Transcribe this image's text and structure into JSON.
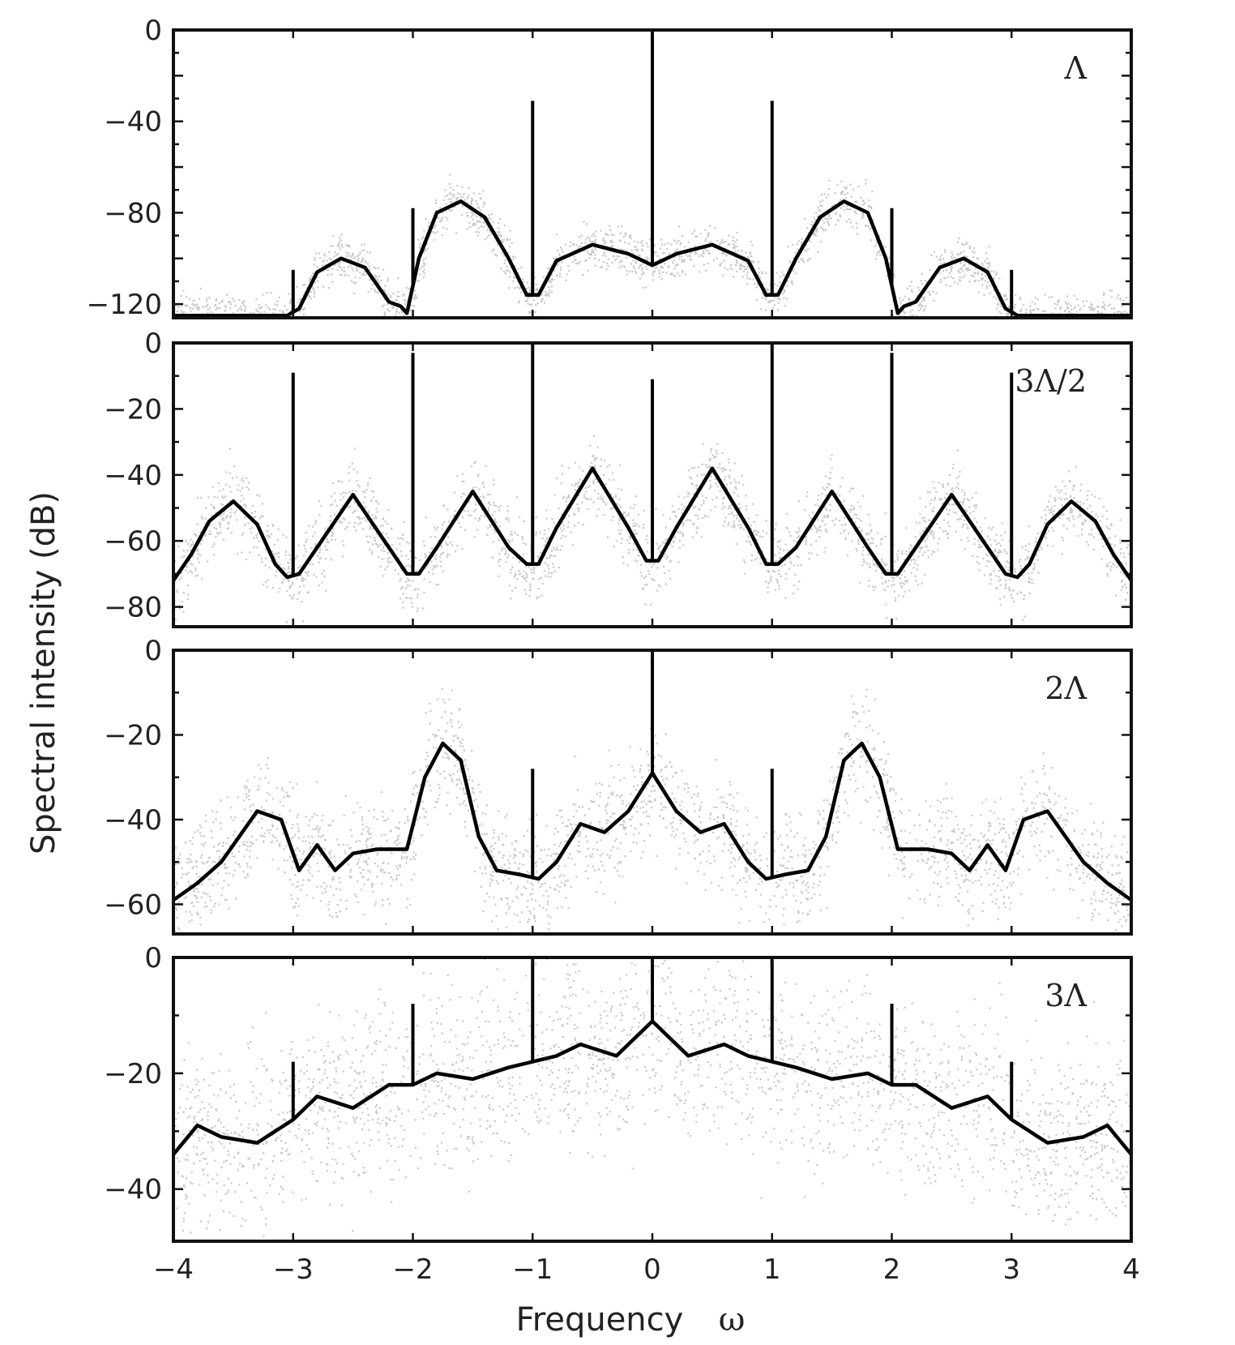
{
  "figure": {
    "ylabel": "Spectral intensity (dB)",
    "xlabel_text": "Frequency",
    "xlabel_symbol": "ω"
  },
  "colors": {
    "line": "#000000",
    "scatter": "#c9c9c9",
    "frame": "#111111"
  },
  "chart_data": [
    {
      "type": "line",
      "panel_label": "Λ",
      "xlim": [
        -4,
        4
      ],
      "ylim": [
        -126,
        0
      ],
      "yticks": [
        0,
        -40,
        -80,
        -120
      ],
      "ytick_labels": [
        "0",
        "−40",
        "−80",
        "−120"
      ],
      "grid": false,
      "series": [
        {
          "x": [
            -4,
            -3.5,
            -3.05,
            -2.95,
            -2.8,
            -2.6,
            -2.4,
            -2.2,
            -2.1,
            -2.05,
            -1.95,
            -1.8,
            -1.6,
            -1.4,
            -1.2,
            -1.05,
            -0.95,
            -0.8,
            -0.5,
            -0.2,
            0,
            0.2,
            0.5,
            0.8,
            0.95,
            1.05,
            1.2,
            1.4,
            1.6,
            1.8,
            1.95,
            2.05,
            2.1,
            2.2,
            2.4,
            2.6,
            2.8,
            2.95,
            3.05,
            3.5,
            4
          ],
          "y": [
            -125,
            -125,
            -125,
            -122,
            -106,
            -100,
            -104,
            -119,
            -121,
            -124,
            -100,
            -80,
            -75,
            -82,
            -100,
            -116,
            -116,
            -101,
            -94,
            -98,
            -103,
            -98,
            -94,
            -101,
            -116,
            -116,
            -100,
            -82,
            -75,
            -80,
            -100,
            -124,
            -121,
            -119,
            -104,
            -100,
            -106,
            -122,
            -125,
            -125,
            -125
          ]
        }
      ],
      "peaks": [
        {
          "x": -3,
          "y": -105
        },
        {
          "x": -2,
          "y": -78
        },
        {
          "x": -1,
          "y": -31
        },
        {
          "x": 0,
          "y": 0
        },
        {
          "x": 1,
          "y": -31
        },
        {
          "x": 2,
          "y": -78
        },
        {
          "x": 3,
          "y": -105
        }
      ],
      "scatter_spread": 5
    },
    {
      "type": "line",
      "panel_label": "3Λ/2",
      "xlim": [
        -4,
        4
      ],
      "ylim": [
        -86,
        0
      ],
      "yticks": [
        0,
        -20,
        -40,
        -60,
        -80
      ],
      "ytick_labels": [
        "0",
        "−20",
        "−40",
        "−60",
        "−80"
      ],
      "grid": false,
      "series": [
        {
          "x": [
            -4,
            -3.85,
            -3.7,
            -3.5,
            -3.3,
            -3.15,
            -3.05,
            -2.95,
            -2.8,
            -2.5,
            -2.2,
            -2.05,
            -1.95,
            -1.8,
            -1.5,
            -1.2,
            -1.05,
            -0.95,
            -0.8,
            -0.5,
            -0.2,
            -0.05,
            0.05,
            0.2,
            0.5,
            0.8,
            0.95,
            1.05,
            1.2,
            1.5,
            1.8,
            1.95,
            2.05,
            2.2,
            2.5,
            2.8,
            2.95,
            3.05,
            3.15,
            3.3,
            3.5,
            3.7,
            3.85,
            4
          ],
          "y": [
            -72,
            -64,
            -54,
            -48,
            -55,
            -67,
            -71,
            -70,
            -62,
            -46,
            -62,
            -70,
            -70,
            -62,
            -45,
            -62,
            -67,
            -67,
            -56,
            -38,
            -56,
            -66,
            -66,
            -56,
            -38,
            -56,
            -67,
            -67,
            -62,
            -45,
            -62,
            -70,
            -70,
            -62,
            -46,
            -62,
            -70,
            -71,
            -67,
            -55,
            -48,
            -54,
            -64,
            -72
          ]
        }
      ],
      "peaks": [
        {
          "x": -3,
          "y": -9
        },
        {
          "x": -2,
          "y": -3
        },
        {
          "x": -1,
          "y": 0
        },
        {
          "x": 0,
          "y": -11
        },
        {
          "x": 1,
          "y": 0
        },
        {
          "x": 2,
          "y": -3
        },
        {
          "x": 3,
          "y": -9
        }
      ],
      "scatter_spread": 6
    },
    {
      "type": "line",
      "panel_label": "2Λ",
      "xlim": [
        -4,
        4
      ],
      "ylim": [
        -67,
        0
      ],
      "yticks": [
        0,
        -20,
        -40,
        -60
      ],
      "ytick_labels": [
        "0",
        "−20",
        "−40",
        "−60"
      ],
      "grid": false,
      "series": [
        {
          "x": [
            -4,
            -3.8,
            -3.6,
            -3.3,
            -3.1,
            -2.95,
            -2.8,
            -2.65,
            -2.5,
            -2.3,
            -2.05,
            -1.9,
            -1.75,
            -1.6,
            -1.45,
            -1.3,
            -1.1,
            -0.95,
            -0.8,
            -0.6,
            -0.4,
            -0.2,
            0,
            0.2,
            0.4,
            0.6,
            0.8,
            0.95,
            1.1,
            1.3,
            1.45,
            1.6,
            1.75,
            1.9,
            2.05,
            2.3,
            2.5,
            2.65,
            2.8,
            2.95,
            3.1,
            3.3,
            3.6,
            3.8,
            4
          ],
          "y": [
            -59,
            -55,
            -50,
            -38,
            -40,
            -52,
            -46,
            -52,
            -48,
            -47,
            -47,
            -30,
            -22,
            -26,
            -44,
            -52,
            -53,
            -54,
            -50,
            -41,
            -43,
            -38,
            -29,
            -38,
            -43,
            -41,
            -50,
            -54,
            -53,
            -52,
            -44,
            -26,
            -22,
            -30,
            -47,
            -47,
            -48,
            -52,
            -46,
            -52,
            -40,
            -38,
            -50,
            -55,
            -59
          ]
        }
      ],
      "peaks": [
        {
          "x": -1,
          "y": -28
        },
        {
          "x": 0,
          "y": 0
        },
        {
          "x": 1,
          "y": -28
        }
      ],
      "scatter_spread": 7
    },
    {
      "type": "line",
      "panel_label": "3Λ",
      "xlim": [
        -4,
        4
      ],
      "ylim": [
        -49,
        0
      ],
      "yticks": [
        0,
        -20,
        -40
      ],
      "ytick_labels": [
        "0",
        "−20",
        "−40"
      ],
      "grid": false,
      "series": [
        {
          "x": [
            -4,
            -3.8,
            -3.6,
            -3.3,
            -3.0,
            -2.8,
            -2.5,
            -2.2,
            -2.0,
            -1.8,
            -1.5,
            -1.2,
            -1.0,
            -0.8,
            -0.6,
            -0.3,
            -0.1,
            0,
            0.1,
            0.3,
            0.6,
            0.8,
            1.0,
            1.2,
            1.5,
            1.8,
            2.0,
            2.2,
            2.5,
            2.8,
            3.0,
            3.3,
            3.6,
            3.8,
            4
          ],
          "y": [
            -34,
            -29,
            -31,
            -32,
            -28,
            -24,
            -26,
            -22,
            -22,
            -20,
            -21,
            -19,
            -18,
            -17,
            -15,
            -17,
            -13,
            -11,
            -13,
            -17,
            -15,
            -17,
            -18,
            -19,
            -21,
            -20,
            -22,
            -22,
            -26,
            -24,
            -28,
            -32,
            -31,
            -29,
            -34
          ]
        }
      ],
      "peaks": [
        {
          "x": -3,
          "y": -18
        },
        {
          "x": -2,
          "y": -8
        },
        {
          "x": -1,
          "y": 0
        },
        {
          "x": 0,
          "y": 0
        },
        {
          "x": 1,
          "y": 0
        },
        {
          "x": 2,
          "y": -8
        },
        {
          "x": 3,
          "y": -18
        }
      ],
      "scatter_spread": 8
    }
  ],
  "x_axis": {
    "ticks": [
      -4,
      -3,
      -2,
      -1,
      0,
      1,
      2,
      3,
      4
    ],
    "tick_labels": [
      "−4",
      "−3",
      "−2",
      "−1",
      "0",
      "1",
      "2",
      "3",
      "4"
    ]
  }
}
